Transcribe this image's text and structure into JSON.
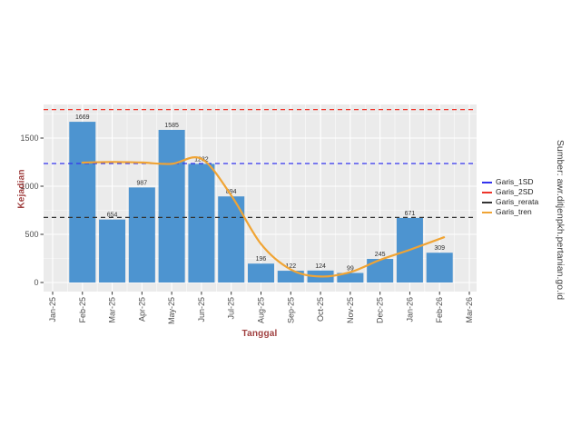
{
  "source_note": "Sumber: awr.ditjenpkh.pertanian.go.id",
  "chart_data": {
    "type": "bar",
    "title": "",
    "xlabel": "Tanggal",
    "ylabel": "Kejadian",
    "x_tick_labels": [
      "Jan-25",
      "Feb-25",
      "Mar-25",
      "Apr-25",
      "May-25",
      "Jun-25",
      "Jul-25",
      "Aug-25",
      "Sep-25",
      "Oct-25",
      "Nov-25",
      "Dec-25",
      "Jan-26",
      "Feb-26",
      "Mar-26"
    ],
    "y_tick_labels": [
      "0",
      "500",
      "1000",
      "1500"
    ],
    "y_ticks": [
      0,
      500,
      1000,
      1500
    ],
    "ylim": [
      -100,
      1850
    ],
    "grid": "white major and minor gridlines on gray panel",
    "legend_position": "right",
    "panel_bg": "#ebebeb",
    "bars": {
      "categories": [
        "Feb-25",
        "Mar-25",
        "Apr-25",
        "May-25",
        "Jun-25",
        "Jul-25",
        "Aug-25",
        "Sep-25",
        "Oct-25",
        "Nov-25",
        "Dec-25",
        "Jan-26",
        "Feb-26"
      ],
      "values": [
        1669,
        654,
        987,
        1585,
        1232,
        894,
        196,
        122,
        124,
        99,
        245,
        671,
        309
      ],
      "color": "#4d94d0",
      "label_color": "#2e2e2e"
    },
    "reference_lines": [
      {
        "name": "Garis_1SD",
        "value": 1236,
        "color": "#3333ee",
        "style": "dashed"
      },
      {
        "name": "Garis_2SD",
        "value": 1796,
        "color": "#ee342a",
        "style": "dashed"
      },
      {
        "name": "Garis_rerata",
        "value": 676,
        "color": "#333333",
        "style": "dashed"
      }
    ],
    "trend": {
      "name": "Garis_tren",
      "color": "#f0a434",
      "points": [
        {
          "x": 1,
          "y": 1245
        },
        {
          "x": 2,
          "y": 1252
        },
        {
          "x": 3,
          "y": 1246
        },
        {
          "x": 4,
          "y": 1232
        },
        {
          "x": 5,
          "y": 1285
        },
        {
          "x": 6,
          "y": 905
        },
        {
          "x": 7,
          "y": 400
        },
        {
          "x": 8,
          "y": 135
        },
        {
          "x": 9,
          "y": 62
        },
        {
          "x": 10,
          "y": 108
        },
        {
          "x": 11,
          "y": 235
        },
        {
          "x": 12,
          "y": 340
        },
        {
          "x": 13.15,
          "y": 470
        }
      ]
    },
    "legend": [
      {
        "label": "Garis_1SD",
        "color": "#3333ee",
        "dashed": true
      },
      {
        "label": "Garis_2SD",
        "color": "#ee342a",
        "dashed": true
      },
      {
        "label": "Garis_rerata",
        "color": "#333333",
        "dashed": true
      },
      {
        "label": "Garis_tren",
        "color": "#f0a434",
        "dashed": false
      }
    ],
    "tick_text_color": "#4d4d4d",
    "axis_title_color": "#a04040"
  }
}
